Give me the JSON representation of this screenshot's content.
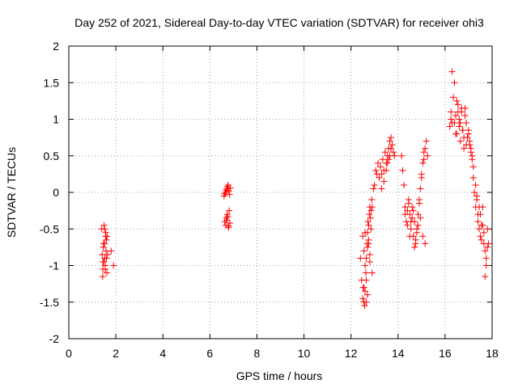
{
  "chart_data": {
    "type": "scatter",
    "title": "Day 252 of 2021, Sidereal Day-to-day VTEC variation (SDTVAR) for receiver ohi3",
    "xlabel": "GPS time / hours",
    "ylabel": "SDTVAR / TECUs",
    "xlim": [
      0,
      18
    ],
    "ylim": [
      -2,
      2
    ],
    "xticks": [
      0,
      2,
      4,
      6,
      8,
      10,
      12,
      14,
      16,
      18
    ],
    "yticks": [
      -2,
      -1.5,
      -1,
      -0.5,
      0,
      0.5,
      1,
      1.5,
      2
    ],
    "xtick_labels": [
      "0",
      "2",
      "4",
      "6",
      "8",
      "10",
      "12",
      "14",
      "16",
      "18"
    ],
    "ytick_labels": [
      "-2",
      "-1.5",
      "-1",
      "-0.5",
      "0",
      "0.5",
      "1",
      "1.5",
      "2"
    ],
    "grid": true,
    "marker": "+",
    "series_color": "#ff0000",
    "series": [
      {
        "name": "SDTVAR",
        "x": [
          1.4,
          1.42,
          1.44,
          1.45,
          1.47,
          1.48,
          1.5,
          1.52,
          1.53,
          1.55,
          1.57,
          1.58,
          1.6,
          1.62,
          1.63,
          1.65,
          1.45,
          1.48,
          1.52,
          1.56,
          1.6,
          1.55,
          1.9,
          1.8,
          6.6,
          6.63,
          6.66,
          6.69,
          6.72,
          6.75,
          6.78,
          6.81,
          6.84,
          6.87,
          6.63,
          6.67,
          6.7,
          6.74,
          6.78,
          6.82,
          6.85,
          6.72,
          6.76,
          6.8,
          12.4,
          12.45,
          12.5,
          12.52,
          12.55,
          12.58,
          12.6,
          12.63,
          12.65,
          12.68,
          12.7,
          12.72,
          12.75,
          12.78,
          12.8,
          12.83,
          12.85,
          12.88,
          12.9,
          12.95,
          13.0,
          13.05,
          13.1,
          13.15,
          13.2,
          13.25,
          13.3,
          13.35,
          13.4,
          13.45,
          13.5,
          13.55,
          13.6,
          13.65,
          13.7,
          13.75,
          13.8,
          13.85,
          13.3,
          13.4,
          13.5,
          13.55,
          13.6,
          13.65,
          13.7,
          12.5,
          12.55,
          12.6,
          12.65,
          12.7,
          12.75,
          12.8,
          12.6,
          12.7,
          12.8,
          12.9,
          12.55,
          12.65,
          12.75,
          12.85,
          14.15,
          14.2,
          14.25,
          14.3,
          14.35,
          14.4,
          14.45,
          14.5,
          14.55,
          14.6,
          14.65,
          14.7,
          14.75,
          14.8,
          14.85,
          14.9,
          14.95,
          15.0,
          15.05,
          15.1,
          15.15,
          15.2,
          15.25,
          14.4,
          14.5,
          14.6,
          14.7,
          14.8,
          14.9,
          15.0,
          15.1,
          14.3,
          14.45,
          14.55,
          14.65,
          14.75,
          14.85,
          14.95,
          15.05,
          15.15,
          16.2,
          16.25,
          16.3,
          16.35,
          16.4,
          16.45,
          16.5,
          16.55,
          16.6,
          16.65,
          16.7,
          16.75,
          16.8,
          16.85,
          16.9,
          16.95,
          17.0,
          17.05,
          17.1,
          17.15,
          17.2,
          17.25,
          17.3,
          17.35,
          17.4,
          17.45,
          17.5,
          17.55,
          17.6,
          17.65,
          17.7,
          17.75,
          17.8,
          17.85,
          16.3,
          16.4,
          16.5,
          16.6,
          16.7,
          16.8,
          16.9,
          17.0,
          17.1,
          17.2,
          17.3,
          17.4,
          17.5,
          17.6,
          17.7,
          17.8,
          16.25,
          16.45,
          16.55,
          16.65,
          16.75,
          16.85,
          17.05,
          17.15,
          17.35,
          17.45,
          17.55,
          17.65,
          17.75
        ],
        "y": [
          -0.5,
          -0.85,
          -1.15,
          -1.05,
          -0.75,
          -0.95,
          -0.45,
          -0.7,
          -0.9,
          -1.0,
          -0.55,
          -0.8,
          -0.65,
          -1.1,
          -0.6,
          -0.85,
          -0.95,
          -0.7,
          -0.5,
          -0.6,
          -0.9,
          -1.05,
          -1.0,
          -0.8,
          -0.05,
          -0.02,
          0.0,
          0.03,
          0.05,
          0.08,
          0.1,
          0.02,
          -0.03,
          0.06,
          -0.4,
          -0.45,
          -0.35,
          -0.3,
          -0.48,
          -0.25,
          -0.42,
          -0.38,
          -0.33,
          -0.46,
          -0.9,
          -1.2,
          -1.45,
          -1.3,
          -1.5,
          -1.55,
          -1.35,
          -1.1,
          -0.9,
          -0.7,
          -0.55,
          -0.4,
          -0.45,
          -0.3,
          -0.2,
          -0.35,
          -0.25,
          -0.1,
          -0.2,
          0.05,
          0.1,
          0.3,
          0.25,
          0.4,
          0.2,
          0.35,
          0.25,
          0.45,
          0.3,
          0.55,
          0.4,
          0.5,
          0.6,
          0.7,
          0.75,
          0.65,
          0.55,
          0.5,
          0.05,
          0.15,
          0.3,
          0.4,
          0.45,
          0.5,
          0.6,
          -0.6,
          -0.8,
          -1.0,
          -1.2,
          -1.4,
          -0.65,
          -0.85,
          -0.55,
          -0.75,
          -0.95,
          -1.1,
          -1.3,
          -1.5,
          -0.7,
          -0.5,
          0.5,
          0.3,
          0.1,
          -0.2,
          -0.4,
          -0.25,
          -0.1,
          -0.3,
          -0.5,
          -0.35,
          -0.6,
          -0.4,
          -0.7,
          -0.55,
          -0.3,
          -0.15,
          0.05,
          0.25,
          0.4,
          0.55,
          0.6,
          0.7,
          0.5,
          -0.45,
          -0.6,
          -0.2,
          -0.75,
          -0.5,
          -0.1,
          0.2,
          0.45,
          -0.3,
          -0.15,
          -0.4,
          -0.25,
          -0.65,
          -0.45,
          -0.35,
          -0.6,
          -0.7,
          0.9,
          1.1,
          1.65,
          1.3,
          0.95,
          1.05,
          0.8,
          1.2,
          1.0,
          0.7,
          1.15,
          0.85,
          0.6,
          1.05,
          0.95,
          0.75,
          0.8,
          0.7,
          0.6,
          0.45,
          0.2,
          0.0,
          -0.2,
          -0.1,
          -0.4,
          -0.5,
          -0.3,
          -0.65,
          -0.45,
          -0.55,
          -0.8,
          -1.0,
          -0.5,
          -0.7,
          0.95,
          1.5,
          1.25,
          0.9,
          1.1,
          0.75,
          0.65,
          0.85,
          0.55,
          0.35,
          0.1,
          -0.3,
          -0.6,
          -0.2,
          -1.15,
          -0.75,
          1.0,
          0.8,
          1.1,
          0.95,
          0.85,
          1.15,
          0.65,
          0.5,
          -0.05,
          -0.2,
          -0.45,
          -0.7,
          -0.9
        ]
      }
    ]
  }
}
